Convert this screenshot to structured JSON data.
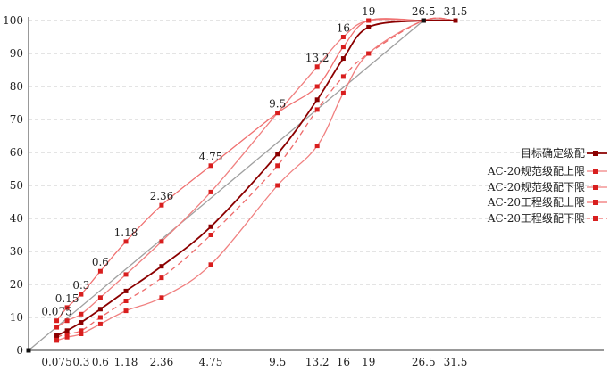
{
  "chart_data": {
    "type": "line",
    "title": "",
    "xlabel": "",
    "ylabel": "",
    "ylim": [
      0,
      100
    ],
    "yticks": [
      0,
      10,
      20,
      30,
      40,
      50,
      60,
      70,
      80,
      90,
      100
    ],
    "xscale": "power-0.45",
    "x_tick_labels": [
      "0.075",
      "0.3",
      "0.6",
      "1.18",
      "2.36",
      "4.75",
      "9.5",
      "13.2",
      "16",
      "19",
      "26.5",
      "31.5"
    ],
    "sieve_sizes": [
      0.075,
      0.15,
      0.3,
      0.6,
      1.18,
      2.36,
      4.75,
      9.5,
      13.2,
      16,
      19,
      26.5,
      31.5
    ],
    "annotations": [
      {
        "label": "0.075",
        "x": 0.075,
        "y": 9
      },
      {
        "label": "0.15",
        "x": 0.15,
        "y": 13
      },
      {
        "label": "0.3",
        "x": 0.3,
        "y": 17
      },
      {
        "label": "0.6",
        "x": 0.6,
        "y": 24
      },
      {
        "label": "1.18",
        "x": 1.18,
        "y": 33
      },
      {
        "label": "2.36",
        "x": 2.36,
        "y": 44
      },
      {
        "label": "4.75",
        "x": 4.75,
        "y": 56
      },
      {
        "label": "9.5",
        "x": 9.5,
        "y": 72
      },
      {
        "label": "13.2",
        "x": 13.2,
        "y": 86
      },
      {
        "label": "16",
        "x": 16,
        "y": 95
      },
      {
        "label": "19",
        "x": 19,
        "y": 100
      },
      {
        "label": "26.5",
        "x": 26.5,
        "y": 100
      },
      {
        "label": "31.5",
        "x": 31.5,
        "y": 100
      }
    ],
    "reference_line": {
      "color": "#a0a0a0",
      "from": [
        0,
        0
      ],
      "to": [
        26.5,
        100
      ]
    },
    "legend_position": "right",
    "grid": true,
    "series": [
      {
        "name": "目标确定级配",
        "color": "#8b0000",
        "dashed": false,
        "width": 1.8,
        "x": [
          0.075,
          0.15,
          0.3,
          0.6,
          1.18,
          2.36,
          4.75,
          9.5,
          13.2,
          16,
          19,
          26.5,
          31.5
        ],
        "values": [
          4.5,
          6,
          8.5,
          12.5,
          18,
          25.5,
          37.5,
          59.5,
          76,
          88.5,
          98,
          100,
          100
        ]
      },
      {
        "name": "AC-20规范级配上限",
        "color": "#f08080",
        "dashed": false,
        "width": 1.3,
        "x": [
          0.075,
          0.15,
          0.3,
          0.6,
          1.18,
          2.36,
          4.75,
          9.5,
          13.2,
          16,
          19,
          26.5,
          31.5
        ],
        "values": [
          7,
          9,
          11,
          16,
          23,
          33,
          48,
          72,
          86,
          95,
          100,
          100,
          100
        ]
      },
      {
        "name": "AC-20规范级配下限",
        "color": "#f08080",
        "dashed": false,
        "width": 1.3,
        "x": [
          0.075,
          0.15,
          0.3,
          0.6,
          1.18,
          2.36,
          4.75,
          9.5,
          13.2,
          16,
          19,
          26.5,
          31.5
        ],
        "values": [
          3,
          4,
          5,
          8,
          12,
          16,
          26,
          50,
          62,
          78,
          90,
          100,
          100
        ]
      },
      {
        "name": "AC-20工程级配上限",
        "color": "#f07070",
        "dashed": false,
        "width": 1.3,
        "x": [
          0.075,
          0.15,
          0.3,
          0.6,
          1.18,
          2.36,
          4.75,
          9.5,
          13.2,
          16,
          19,
          26.5,
          31.5
        ],
        "values": [
          9,
          13,
          17,
          24,
          33,
          44,
          56,
          72,
          80,
          92,
          100,
          100,
          100
        ]
      },
      {
        "name": "AC-20工程级配下限",
        "color": "#ee6a6a",
        "dashed": true,
        "width": 1.3,
        "x": [
          0.075,
          0.15,
          0.3,
          0.6,
          1.18,
          2.36,
          4.75,
          9.5,
          13.2,
          16,
          19,
          26.5,
          31.5
        ],
        "values": [
          4,
          5,
          6,
          10,
          15,
          22,
          35,
          56,
          73,
          83,
          90,
          100,
          100
        ]
      }
    ]
  }
}
